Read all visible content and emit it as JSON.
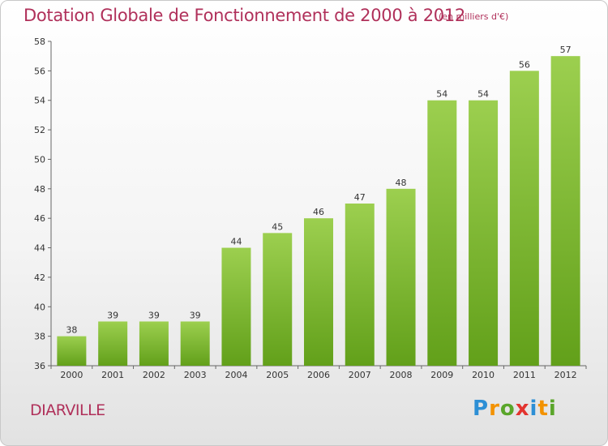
{
  "header": {
    "title": "Dotation Globale de Fonctionnement de 2000 à 2012",
    "subtitle": "(en milliers d'€)"
  },
  "footer": {
    "commune": "DIARVILLE",
    "logo_letters": [
      "P",
      "r",
      "o",
      "x",
      "i",
      "t",
      "i"
    ],
    "logo_colors": [
      "#2d8fd5",
      "#f39200",
      "#5aa62a",
      "#e3342f",
      "#2d8fd5",
      "#f39200",
      "#5aa62a"
    ]
  },
  "chart_data": {
    "type": "bar",
    "title": "Dotation Globale de Fonctionnement de 2000 à 2012",
    "subtitle": "(en milliers d'€)",
    "categories": [
      "2000",
      "2001",
      "2002",
      "2003",
      "2004",
      "2005",
      "2006",
      "2007",
      "2008",
      "2009",
      "2010",
      "2011",
      "2012"
    ],
    "values": [
      38,
      39,
      39,
      39,
      44,
      45,
      46,
      47,
      48,
      54,
      54,
      56,
      57
    ],
    "ylim": [
      36,
      58
    ],
    "yticks": [
      36,
      38,
      40,
      42,
      44,
      46,
      48,
      50,
      52,
      54,
      56,
      58
    ],
    "grid": false,
    "bar_color_top": "#9ccf4f",
    "bar_color_bottom": "#62a01a"
  }
}
